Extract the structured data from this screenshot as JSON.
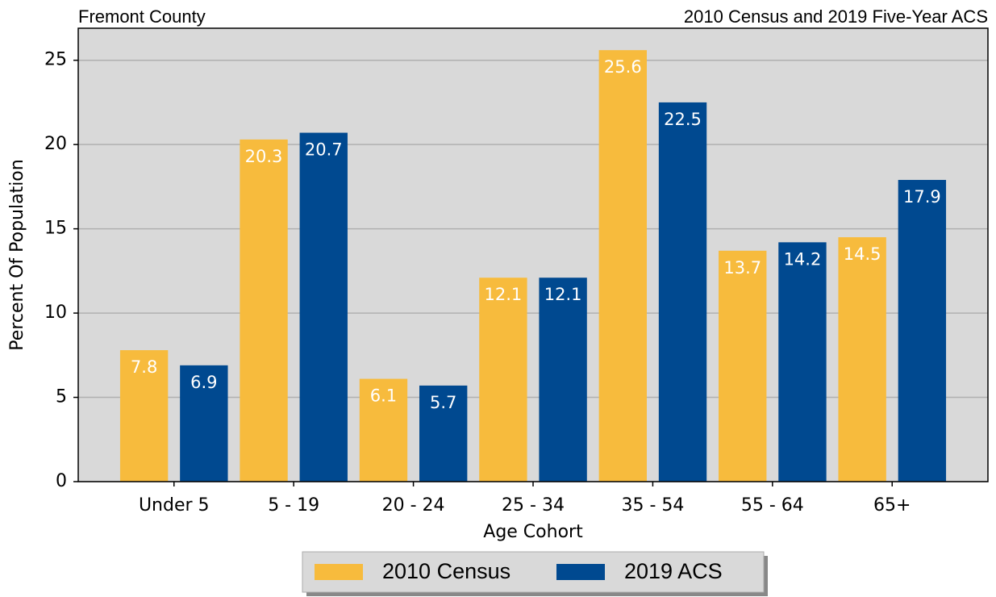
{
  "chart_data": {
    "type": "bar",
    "title_left": "Fremont County",
    "title_right": "2010 Census and 2019 Five-Year ACS",
    "xlabel": "Age Cohort",
    "ylabel": "Percent Of Population",
    "categories": [
      "Under 5",
      "5 - 19",
      "20 - 24",
      "25 - 34",
      "35 - 54",
      "55 - 64",
      "65+"
    ],
    "series": [
      {
        "name": "2010 Census",
        "color": "#f7bb3d",
        "values": [
          7.8,
          20.3,
          6.1,
          12.1,
          25.6,
          13.7,
          14.5
        ]
      },
      {
        "name": "2019 ACS",
        "color": "#004990",
        "values": [
          6.9,
          20.7,
          5.7,
          12.1,
          22.5,
          14.2,
          17.9
        ]
      }
    ],
    "ylim": [
      0,
      26.9
    ],
    "yticks": [
      0,
      5,
      10,
      15,
      20,
      25
    ],
    "grid": true,
    "legend": "bottom"
  }
}
